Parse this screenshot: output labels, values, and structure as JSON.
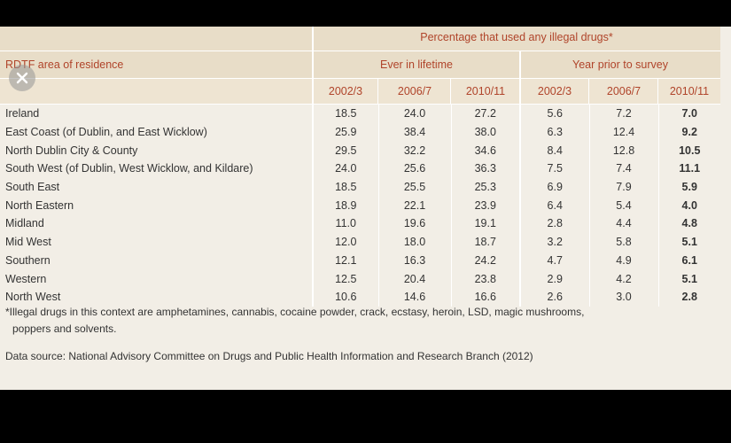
{
  "table": {
    "group_title": "Percentage that used any illegal drugs*",
    "row_header": "RDTF area of residence",
    "subgroups": [
      "Ever in lifetime",
      "Year prior to survey"
    ],
    "years": [
      "2002/3",
      "2006/7",
      "2010/11",
      "2002/3",
      "2006/7",
      "2010/11"
    ],
    "rows": [
      {
        "area": "Ireland",
        "values": [
          "18.5",
          "24.0",
          "27.2",
          "5.6",
          "7.2",
          "7.0"
        ]
      },
      {
        "area": "East Coast (of Dublin, and East Wicklow)",
        "values": [
          "25.9",
          "38.4",
          "38.0",
          "6.3",
          "12.4",
          "9.2"
        ]
      },
      {
        "area": "North Dublin City & County",
        "values": [
          "29.5",
          "32.2",
          "34.6",
          "8.4",
          "12.8",
          "10.5"
        ]
      },
      {
        "area": "South West (of Dublin, West Wicklow, and Kildare)",
        "values": [
          "24.0",
          "25.6",
          "36.3",
          "7.5",
          "7.4",
          "11.1"
        ]
      },
      {
        "area": "South East",
        "values": [
          "18.5",
          "25.5",
          "25.3",
          "6.9",
          "7.9",
          "5.9"
        ]
      },
      {
        "area": "North Eastern",
        "values": [
          "18.9",
          "22.1",
          "23.9",
          "6.4",
          "5.4",
          "4.0"
        ]
      },
      {
        "area": "Midland",
        "values": [
          "11.0",
          "19.6",
          "19.1",
          "2.8",
          "4.4",
          "4.8"
        ]
      },
      {
        "area": "Mid West",
        "values": [
          "12.0",
          "18.0",
          "18.7",
          "3.2",
          "5.8",
          "5.1"
        ]
      },
      {
        "area": "Southern",
        "values": [
          "12.1",
          "16.3",
          "24.2",
          "4.7",
          "4.9",
          "6.1"
        ]
      },
      {
        "area": "Western",
        "values": [
          "12.5",
          "20.4",
          "23.8",
          "2.9",
          "4.2",
          "5.1"
        ]
      },
      {
        "area": "North West",
        "values": [
          "10.6",
          "14.6",
          "16.6",
          "2.6",
          "3.0",
          "2.8"
        ]
      }
    ]
  },
  "footnote": "Illegal drugs in this context are amphetamines, cannabis, cocaine powder, crack, ecstasy, heroin, LSD, magic mushrooms,",
  "footnote_marker": "*",
  "footnote_line2": "poppers and solvents.",
  "source": "Data source: National Advisory Committee on Drugs and Public Health Information and Research Branch (2012)",
  "icons": {
    "close": "close-icon"
  },
  "colors": {
    "header_text": "#b0442a",
    "header_bg": "#e8ddc8",
    "body_bg": "#f2eee6"
  }
}
